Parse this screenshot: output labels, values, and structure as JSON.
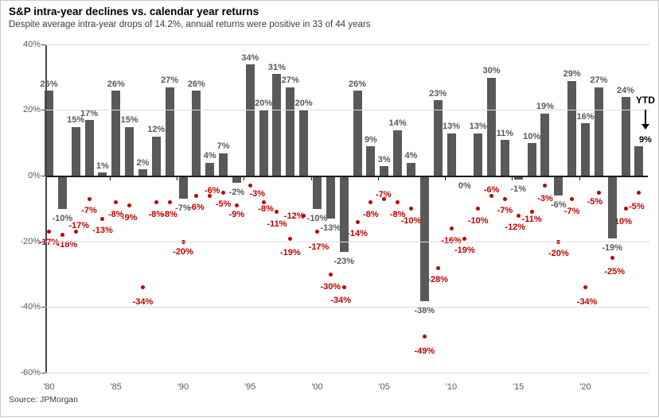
{
  "title": "S&P intra-year declines vs. calendar year returns",
  "subtitle": "Despite average intra-year drops of 14.2%, annual returns were positive in 33 of 44 years",
  "source": "Source: JPMorgan",
  "ytd_annotation": {
    "label": "YTD",
    "arrow": "down-arrow-icon"
  },
  "chart_data": {
    "type": "bar",
    "title": "S&P intra-year declines vs. calendar year returns",
    "xlabel": "",
    "ylabel": "",
    "ylim": [
      -60,
      40
    ],
    "grid": "horizontal",
    "y_tick_labels": [
      "40%",
      "20%",
      "0%",
      "-20%",
      "-40%",
      "-60%"
    ],
    "y_tick_values": [
      40,
      20,
      0,
      -20,
      -40,
      -60
    ],
    "x_tick_labels": [
      "'80",
      "'85",
      "'90",
      "'95",
      "'00",
      "'05",
      "'10",
      "'15",
      "'20"
    ],
    "x_tick_years": [
      1980,
      1985,
      1990,
      1995,
      2000,
      2005,
      2010,
      2015,
      2020
    ],
    "categories": [
      "1980",
      "1981",
      "1982",
      "1983",
      "1984",
      "1985",
      "1986",
      "1987",
      "1988",
      "1989",
      "1990",
      "1991",
      "1992",
      "1993",
      "1994",
      "1995",
      "1996",
      "1997",
      "1998",
      "1999",
      "2000",
      "2001",
      "2002",
      "2003",
      "2004",
      "2005",
      "2006",
      "2007",
      "2008",
      "2009",
      "2010",
      "2011",
      "2012",
      "2013",
      "2014",
      "2015",
      "2016",
      "2017",
      "2018",
      "2019",
      "2020",
      "2021",
      "2022",
      "2023",
      "YTD"
    ],
    "series": [
      {
        "name": "Calendar year return",
        "type": "bar",
        "color": "#595959",
        "values": [
          26,
          -10,
          15,
          17,
          1,
          26,
          15,
          2,
          12,
          27,
          -7,
          26,
          4,
          7,
          -2,
          34,
          20,
          31,
          27,
          20,
          -10,
          -13,
          -23,
          26,
          9,
          3,
          14,
          4,
          -38,
          23,
          13,
          0,
          13,
          30,
          11,
          -1,
          10,
          19,
          -6,
          29,
          16,
          27,
          -19,
          24,
          9
        ]
      },
      {
        "name": "Intra-year decline",
        "type": "scatter",
        "color": "#c00000",
        "values": [
          -17,
          -18,
          -17,
          -7,
          -13,
          -8,
          -9,
          -34,
          -8,
          -8,
          -20,
          -6,
          -6,
          -5,
          -9,
          -3,
          -8,
          -11,
          -19,
          -12,
          -17,
          -30,
          -34,
          -14,
          -8,
          -7,
          -8,
          -10,
          -49,
          -28,
          -16,
          -19,
          -10,
          -6,
          -7,
          -12,
          -11,
          -3,
          -20,
          -7,
          -34,
          -5,
          -25,
          -10,
          -5
        ]
      }
    ],
    "decline_label_offsets": {
      "0": [
        0,
        13
      ],
      "1": [
        6,
        12
      ],
      "2": [
        4,
        -8
      ],
      "7": [
        0,
        18
      ],
      "10": [
        0,
        13
      ],
      "12": [
        3,
        -6
      ],
      "14": [
        0,
        11
      ],
      "15": [
        9,
        10
      ],
      "16": [
        3,
        8
      ],
      "18": [
        0,
        18
      ],
      "19": [
        -12,
        1
      ],
      "20": [
        2,
        19
      ],
      "21": [
        0,
        16
      ],
      "22": [
        -4,
        16
      ],
      "25": [
        -1,
        -5
      ],
      "28": [
        0,
        18
      ],
      "33": [
        0,
        -7
      ],
      "35": [
        -4,
        15
      ],
      "36": [
        0,
        9
      ],
      "37": [
        0,
        16
      ],
      "39": [
        0,
        16
      ],
      "40": [
        2,
        18
      ],
      "41": [
        -5,
        12
      ],
      "42": [
        3,
        17
      ],
      "43": [
        -5,
        16
      ],
      "44": [
        -3,
        18
      ]
    },
    "ytd_bar_label_color": "#000000",
    "bar_color": "#595959",
    "dot_color": "#c00000",
    "decline_label_color": "#c00000",
    "bar_label_color": "#595959"
  }
}
